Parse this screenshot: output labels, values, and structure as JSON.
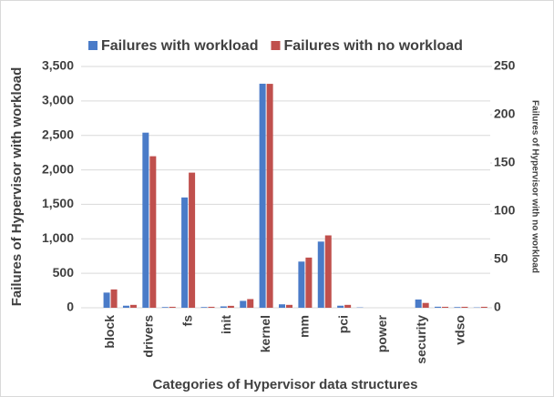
{
  "chart_data": {
    "type": "bar",
    "x_label": "Categories of Hypervisor data structures",
    "y_label": "Failures of Hypervisor with workload",
    "y2_label": "Failures of Hypervisor with no workload",
    "categories": [
      null,
      "block",
      null,
      "drivers",
      null,
      "fs",
      null,
      "init",
      null,
      "kernel",
      null,
      "mm",
      null,
      "pci",
      null,
      "power",
      null,
      "security",
      null,
      "vdso",
      null
    ],
    "series": [
      {
        "name": "Failures with workload",
        "color": "#4a7bc8",
        "values": [
          0,
          220,
          30,
          2540,
          10,
          1600,
          10,
          20,
          100,
          3250,
          50,
          670,
          960,
          30,
          5,
          0,
          0,
          120,
          15,
          10,
          5
        ]
      },
      {
        "name": "Failures with no workload",
        "color": "#c0504d",
        "axis": "y2",
        "values": [
          0,
          19,
          3,
          157,
          1,
          140,
          1,
          2,
          9,
          232,
          3,
          52,
          75,
          3,
          0,
          0,
          0,
          5,
          1,
          1,
          1
        ]
      }
    ],
    "ylim": [
      0,
      3500
    ],
    "yticks": [
      0,
      500,
      {
        "value": 1000,
        "label": "1,000"
      },
      {
        "value": 1500,
        "label": "1,500"
      },
      {
        "value": 2000,
        "label": "2,000"
      },
      {
        "value": 2500,
        "label": "2,500"
      },
      {
        "value": 3000,
        "label": "3,000"
      },
      {
        "value": 3500,
        "label": "3,500"
      }
    ],
    "y2lim": [
      0,
      250
    ],
    "y2ticks": [
      0,
      50,
      100,
      150,
      200,
      250
    ],
    "grid": true,
    "legend": "top"
  }
}
